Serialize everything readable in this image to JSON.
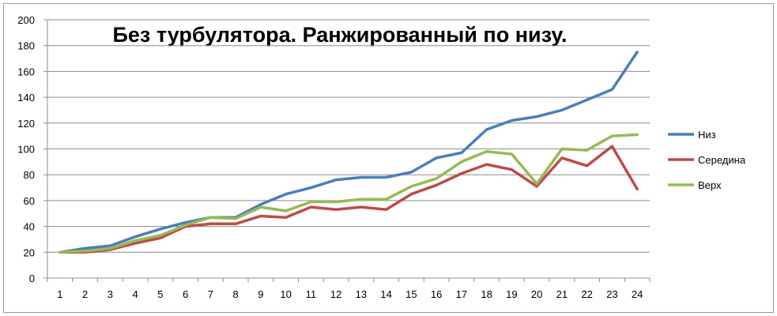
{
  "chart_data": {
    "type": "line",
    "title": "Без турбулятора. Ранжированный по низу.",
    "xlabel": "",
    "ylabel": "",
    "categories": [
      "1",
      "2",
      "3",
      "4",
      "5",
      "6",
      "7",
      "8",
      "9",
      "10",
      "11",
      "12",
      "13",
      "14",
      "15",
      "16",
      "17",
      "18",
      "19",
      "20",
      "21",
      "22",
      "23",
      "24"
    ],
    "ylim": [
      0,
      200
    ],
    "yticks": [
      "0",
      "20",
      "40",
      "60",
      "80",
      "100",
      "120",
      "140",
      "160",
      "180",
      "200"
    ],
    "grid": "horizontal",
    "legend_position": "right",
    "series": [
      {
        "name": "Низ",
        "color": "#4a7ebb",
        "values": [
          20,
          23,
          25,
          32,
          38,
          43,
          47,
          47,
          57,
          65,
          70,
          76,
          78,
          78,
          82,
          93,
          97,
          115,
          122,
          125,
          130,
          138,
          146,
          175
        ]
      },
      {
        "name": "Середина",
        "color": "#be4b48",
        "values": [
          20,
          20,
          22,
          27,
          31,
          40,
          42,
          42,
          48,
          47,
          55,
          53,
          55,
          53,
          65,
          72,
          81,
          88,
          84,
          71,
          93,
          87,
          102,
          69
        ]
      },
      {
        "name": "Верх",
        "color": "#98b954",
        "values": [
          20,
          21,
          23,
          29,
          33,
          41,
          47,
          46,
          55,
          52,
          59,
          59,
          61,
          61,
          71,
          77,
          90,
          98,
          96,
          73,
          100,
          99,
          110,
          111
        ]
      }
    ]
  }
}
